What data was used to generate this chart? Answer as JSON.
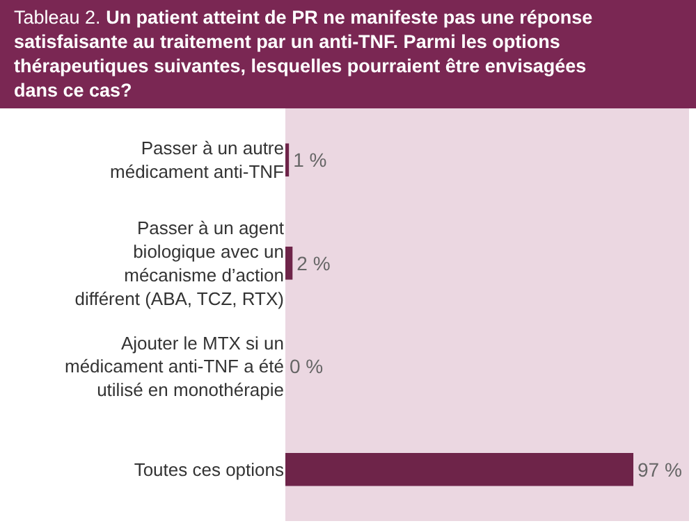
{
  "chart_data": {
    "type": "bar",
    "orientation": "horizontal",
    "title": "Tableau 2.",
    "subtitle": "Un patient atteint de PR ne manifeste pas une réponse satisfaisante au traitement par un anti-TNF. Parmi les options thérapeutiques suivantes, lesquelles pourraient être envisagées dans ce cas?",
    "categories": [
      "Passer à un autre médicament anti-TNF",
      "Passer à un agent biologique avec un mécanisme d’action différent (ABA, TCZ, RTX)",
      "Ajouter le MTX si un médicament anti-TNF a été utilisé en monothérapie",
      "Toutes ces options"
    ],
    "values": [
      1,
      2,
      0,
      97
    ],
    "color": "#6e2449",
    "value_labels": [
      "1 %",
      "2 %",
      "0 %",
      "97 %"
    ],
    "grid": false,
    "legend": false
  }
}
